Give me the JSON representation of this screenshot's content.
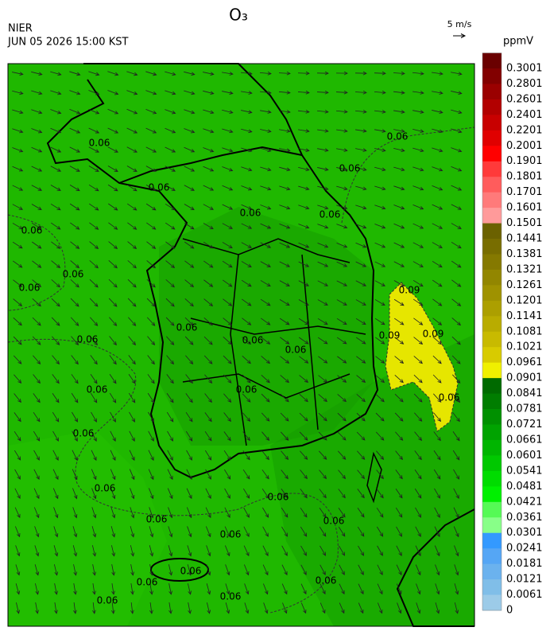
{
  "header": {
    "title": "O₃",
    "agency": "NIER",
    "datetime": "JUN 05 2026 15:00 KST",
    "wind_scale": "5 m/s"
  },
  "legend": {
    "unit": "ppmV",
    "labels": [
      0.3001,
      0.2801,
      0.2601,
      0.2401,
      0.2201,
      0.2001,
      0.1901,
      0.1801,
      0.1701,
      0.1601,
      0.1501,
      0.1441,
      0.1381,
      0.1321,
      0.1261,
      0.1201,
      0.1141,
      0.1081,
      0.1021,
      0.0961,
      0.0901,
      0.0841,
      0.0781,
      0.0721,
      0.0661,
      0.0601,
      0.0541,
      0.0481,
      0.0421,
      0.0361,
      0.0301,
      0.0241,
      0.0181,
      0.0121,
      0.0061,
      0
    ],
    "colors": [
      "#6a0000",
      "#820000",
      "#9a0000",
      "#b20000",
      "#c80000",
      "#e00000",
      "#ff0000",
      "#ff3a3a",
      "#ff5c5c",
      "#ff7a7a",
      "#ff9a9a",
      "#6b6100",
      "#786d00",
      "#857900",
      "#928600",
      "#9f9200",
      "#ac9f00",
      "#b9ac00",
      "#c8ba00",
      "#d8cb00",
      "#f0f000",
      "#006a00",
      "#007d00",
      "#009000",
      "#00a300",
      "#00b500",
      "#00c800",
      "#00dc00",
      "#00f000",
      "#55fa55",
      "#88ff88",
      "#3399ff",
      "#55a6f5",
      "#6bb2ee",
      "#80bee8",
      "#9ccbe8"
    ]
  },
  "map": {
    "contour_labels": [
      "0.06",
      "0.06",
      "0.06",
      "0.06",
      "0.06",
      "0.06",
      "0.06",
      "0.06",
      "0.06",
      "0.06",
      "0.06",
      "0.06",
      "0.06",
      "0.06",
      "0.06",
      "0.06",
      "0.06",
      "0.06",
      "0.06",
      "0.06",
      "0.06",
      "0.06",
      "0.06",
      "0.06",
      "0.06",
      "0.06",
      "0.06",
      "0.09",
      "0.09",
      "0.09"
    ]
  }
}
